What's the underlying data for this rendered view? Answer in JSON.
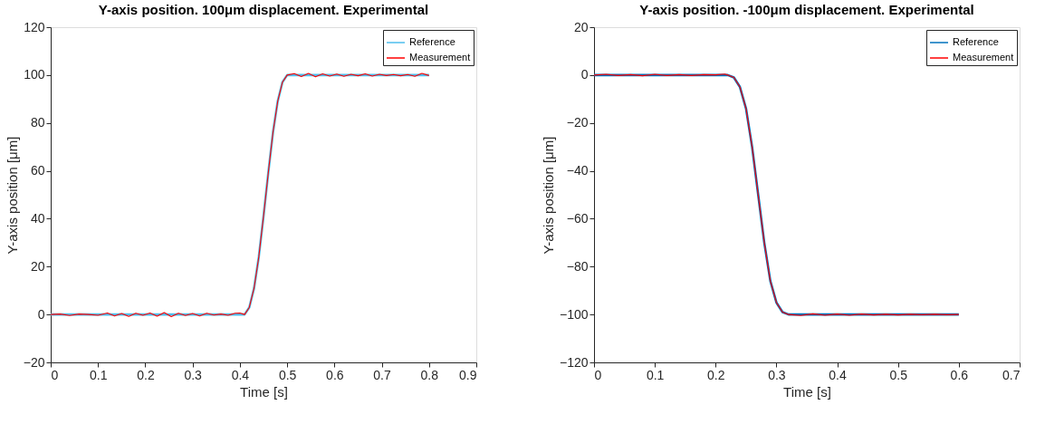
{
  "chart_data": [
    {
      "type": "line",
      "title": "Y-axis position. 100μm displacement. Experimental",
      "xlabel": "Time [s]",
      "ylabel": "Y-axis position [μm]",
      "xlim": [
        0,
        0.9
      ],
      "xticks": [
        0,
        0.1,
        0.2,
        0.3,
        0.4,
        0.5,
        0.6,
        0.7,
        0.8,
        0.9
      ],
      "ylim": [
        -20,
        120
      ],
      "yticks": [
        -20,
        0,
        20,
        40,
        60,
        80,
        100,
        120
      ],
      "grid": false,
      "legend": "top right",
      "line_style": "solid",
      "series": [
        {
          "name": "Reference",
          "color": "#4dbeee",
          "x": [
            0,
            0.41,
            0.42,
            0.43,
            0.44,
            0.45,
            0.46,
            0.47,
            0.48,
            0.49,
            0.5,
            0.8
          ],
          "values": [
            0,
            0,
            3,
            11,
            24,
            41,
            59,
            76,
            89,
            97,
            100,
            100
          ]
        },
        {
          "name": "Measurement",
          "color": "#ff0000",
          "x": [
            0,
            0.02,
            0.04,
            0.06,
            0.08,
            0.1,
            0.12,
            0.135,
            0.15,
            0.165,
            0.18,
            0.195,
            0.21,
            0.225,
            0.24,
            0.255,
            0.27,
            0.285,
            0.3,
            0.315,
            0.33,
            0.345,
            0.36,
            0.375,
            0.39,
            0.4,
            0.41,
            0.42,
            0.43,
            0.44,
            0.45,
            0.46,
            0.47,
            0.48,
            0.49,
            0.5,
            0.515,
            0.53,
            0.545,
            0.56,
            0.575,
            0.59,
            0.605,
            0.62,
            0.635,
            0.65,
            0.665,
            0.68,
            0.695,
            0.71,
            0.725,
            0.74,
            0.755,
            0.77,
            0.785,
            0.8
          ],
          "values": [
            0,
            0.2,
            -0.4,
            0.2,
            0,
            -0.3,
            0.6,
            -0.6,
            0.4,
            -0.8,
            0.5,
            -0.3,
            0.6,
            -0.7,
            0.8,
            -0.9,
            0.5,
            -0.4,
            0.4,
            -0.6,
            0.5,
            -0.2,
            0.2,
            -0.3,
            0.5,
            0.6,
            0,
            3,
            11,
            24,
            41,
            59,
            76,
            89,
            97,
            100,
            100.6,
            99.4,
            100.7,
            99.3,
            100.5,
            99.6,
            100.4,
            99.5,
            100.3,
            99.7,
            100.5,
            99.6,
            100.3,
            99.8,
            100.2,
            99.7,
            100.2,
            99.5,
            100.7,
            99.8
          ]
        }
      ]
    },
    {
      "type": "line",
      "title": "Y-axis position. -100μm displacement. Experimental",
      "xlabel": "Time [s]",
      "ylabel": "Y-axis position [μm]",
      "xlim": [
        0,
        0.7
      ],
      "xticks": [
        0,
        0.1,
        0.2,
        0.3,
        0.4,
        0.5,
        0.6,
        0.7
      ],
      "ylim": [
        -120,
        20
      ],
      "yticks": [
        -120,
        -100,
        -80,
        -60,
        -40,
        -20,
        0,
        20
      ],
      "grid": false,
      "legend": "top right",
      "line_style": "solid",
      "series": [
        {
          "name": "Reference",
          "color": "#0072bd",
          "x": [
            0,
            0.22,
            0.23,
            0.24,
            0.25,
            0.26,
            0.27,
            0.28,
            0.29,
            0.3,
            0.31,
            0.32,
            0.6
          ],
          "values": [
            0,
            0,
            -1,
            -5,
            -14,
            -30,
            -50,
            -70,
            -86,
            -95,
            -99,
            -100,
            -100
          ]
        },
        {
          "name": "Measurement",
          "color": "#ff0000",
          "x": [
            0,
            0.02,
            0.04,
            0.06,
            0.08,
            0.1,
            0.12,
            0.14,
            0.16,
            0.18,
            0.2,
            0.215,
            0.22,
            0.23,
            0.24,
            0.25,
            0.26,
            0.27,
            0.28,
            0.29,
            0.3,
            0.31,
            0.32,
            0.34,
            0.36,
            0.38,
            0.4,
            0.42,
            0.44,
            0.46,
            0.48,
            0.5,
            0.52,
            0.54,
            0.56,
            0.58,
            0.6
          ],
          "values": [
            0,
            0.3,
            -0.2,
            0.2,
            -0.3,
            0.3,
            -0.2,
            0.2,
            -0.2,
            0.2,
            0.1,
            0.4,
            0,
            -1,
            -5,
            -14,
            -30,
            -50,
            -70,
            -86,
            -95,
            -99,
            -100,
            -100.4,
            -99.7,
            -100.3,
            -99.8,
            -100.3,
            -99.8,
            -100.2,
            -99.9,
            -100.2,
            -99.9,
            -100.1,
            -99.9,
            -100.1,
            -100
          ]
        }
      ]
    }
  ]
}
